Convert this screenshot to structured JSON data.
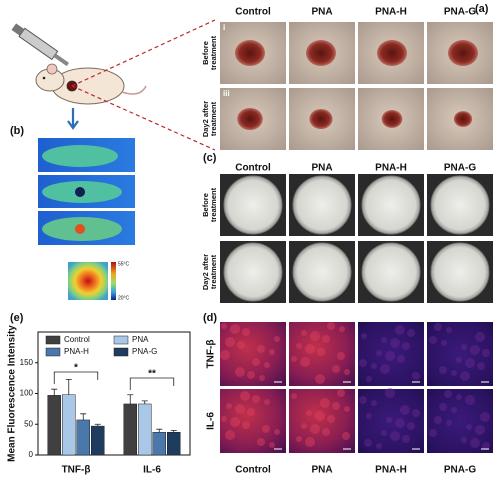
{
  "panel_a": {
    "label": "(a)",
    "columns": [
      "Control",
      "PNA",
      "PNA-H",
      "PNA-G"
    ],
    "rows": [
      [
        "Before",
        "treatment"
      ],
      [
        "Day2 after",
        "treatment"
      ]
    ],
    "row_markers": [
      "i",
      "iii"
    ]
  },
  "panel_b": {
    "label": "(b)",
    "colorbar_max": "55°C",
    "colorbar_min": "20°C"
  },
  "panel_c": {
    "label": "(c)",
    "columns": [
      "Control",
      "PNA",
      "PNA-H",
      "PNA-G"
    ],
    "rows": [
      [
        "Before",
        "treatment"
      ],
      [
        "Day2 after",
        "treatment"
      ]
    ]
  },
  "panel_d": {
    "label": "(d)",
    "columns": [
      "Control",
      "PNA",
      "PNA-H",
      "PNA-G"
    ],
    "rows": [
      "TNF-β",
      "IL-6"
    ]
  },
  "chart_data": {
    "type": "bar",
    "panel_label": "(e)",
    "ylabel": "Mean Fluorescence Intensity",
    "categories": [
      "TNF-β",
      "IL-6"
    ],
    "series": [
      {
        "name": "Control",
        "color": "#404040",
        "values": [
          97,
          83
        ],
        "errors": [
          10,
          15
        ]
      },
      {
        "name": "PNA",
        "color": "#a9c8e8",
        "values": [
          98,
          83
        ],
        "errors": [
          25,
          5
        ]
      },
      {
        "name": "PNA-H",
        "color": "#4a78aa",
        "values": [
          57,
          37
        ],
        "errors": [
          10,
          5
        ]
      },
      {
        "name": "PNA-G",
        "color": "#1e3c5e",
        "values": [
          47,
          37
        ],
        "errors": [
          3,
          3
        ]
      }
    ],
    "annotations": [
      "*",
      "**"
    ],
    "ylim": [
      0,
      200
    ],
    "yticks": [
      0,
      50,
      100,
      150
    ]
  }
}
